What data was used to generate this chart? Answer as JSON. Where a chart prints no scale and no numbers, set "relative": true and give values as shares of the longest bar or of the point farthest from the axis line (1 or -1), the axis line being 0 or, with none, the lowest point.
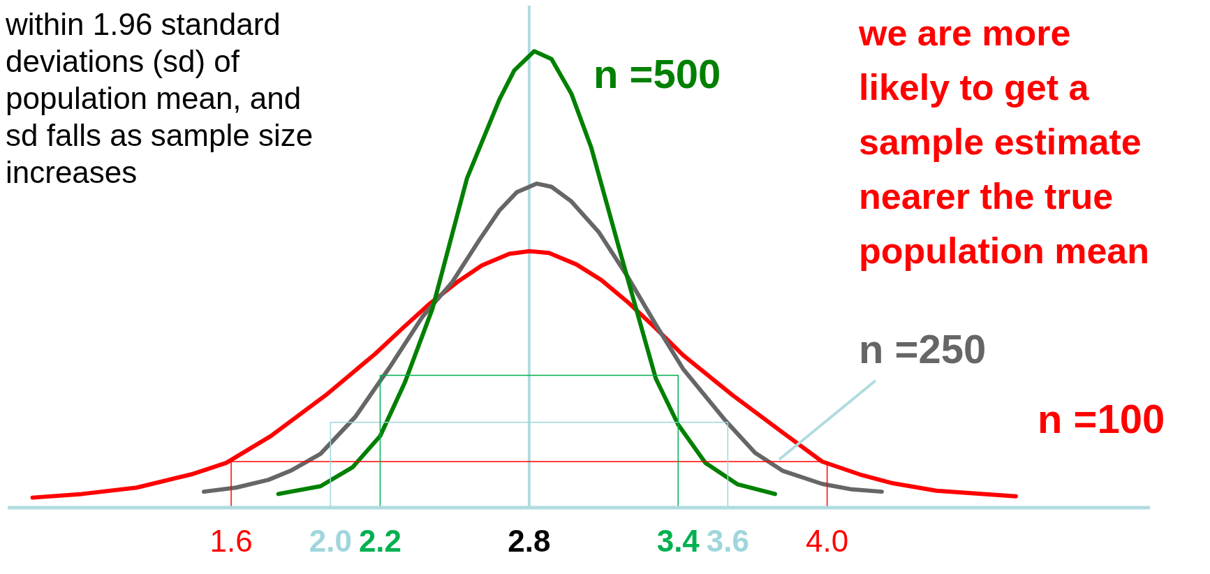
{
  "chart_data": {
    "type": "line",
    "relative": true,
    "xlim": [
      0.7,
      5.3
    ],
    "xticks": [
      1.6,
      {
        "value": 2.0,
        "label": "2.0"
      },
      2.2,
      2.8,
      3.4,
      3.6,
      {
        "value": 4.0,
        "label": "4.0"
      }
    ],
    "series": [
      {
        "name": "n =100",
        "color": "#ff0000",
        "x": [
          0.8,
          1.0,
          1.22,
          1.44,
          1.58,
          1.76,
          1.98,
          2.18,
          2.29,
          2.4,
          2.51,
          2.61,
          2.72,
          2.8,
          2.88,
          2.99,
          3.09,
          3.2,
          3.31,
          3.42,
          3.62,
          3.82,
          3.98,
          4.13,
          4.26,
          4.44,
          4.76
        ],
        "values": [
          0.022,
          0.03,
          0.044,
          0.073,
          0.098,
          0.157,
          0.246,
          0.337,
          0.393,
          0.447,
          0.494,
          0.531,
          0.556,
          0.562,
          0.558,
          0.533,
          0.499,
          0.449,
          0.393,
          0.334,
          0.246,
          0.165,
          0.101,
          0.073,
          0.054,
          0.037,
          0.025
        ]
      },
      {
        "name": "n =250",
        "color": "#666666",
        "x": [
          1.49,
          1.62,
          1.75,
          1.84,
          1.96,
          2.1,
          2.24,
          2.37,
          2.49,
          2.6,
          2.68,
          2.75,
          2.83,
          2.89,
          2.97,
          3.08,
          3.2,
          3.31,
          3.42,
          3.59,
          3.71,
          3.82,
          3.98,
          4.1,
          4.22
        ],
        "values": [
          0.035,
          0.044,
          0.061,
          0.081,
          0.118,
          0.199,
          0.309,
          0.418,
          0.494,
          0.587,
          0.651,
          0.691,
          0.71,
          0.703,
          0.671,
          0.604,
          0.503,
          0.401,
          0.304,
          0.191,
          0.12,
          0.081,
          0.052,
          0.04,
          0.035
        ]
      },
      {
        "name": "n =500",
        "color": "#008000",
        "x": [
          1.79,
          1.96,
          2.09,
          2.2,
          2.3,
          2.41,
          2.55,
          2.68,
          2.74,
          2.82,
          2.89,
          2.97,
          3.05,
          3.17,
          3.31,
          3.4,
          3.51,
          3.64,
          3.79
        ],
        "values": [
          0.03,
          0.047,
          0.089,
          0.157,
          0.275,
          0.435,
          0.722,
          0.894,
          0.958,
          1,
          0.983,
          0.907,
          0.789,
          0.553,
          0.283,
          0.182,
          0.098,
          0.051,
          0.03
        ]
      },
      {
        "color": "#ff0000",
        "x": [
          1.6,
          1.6,
          4.0,
          4.0
        ],
        "values": [
          0,
          0.101,
          0.101,
          0
        ]
      },
      {
        "color": "#9fd6dc",
        "x": [
          2.0,
          2.0,
          3.6,
          3.6
        ],
        "values": [
          0,
          0.187,
          0.187,
          0
        ]
      },
      {
        "color": "#00b050",
        "x": [
          2.2,
          2.2,
          3.4,
          3.4
        ],
        "values": [
          0,
          0.29,
          0.29,
          0
        ]
      }
    ],
    "ref_lines": [
      {
        "axis": "x",
        "value": 2.8,
        "color": "#b0dcdf"
      }
    ],
    "annotations": [
      "within  1.96 standard deviations (sd) of population mean, and sd falls as sample size increases",
      "we are more likely to get a sample estimate nearer the true population mean"
    ]
  }
}
